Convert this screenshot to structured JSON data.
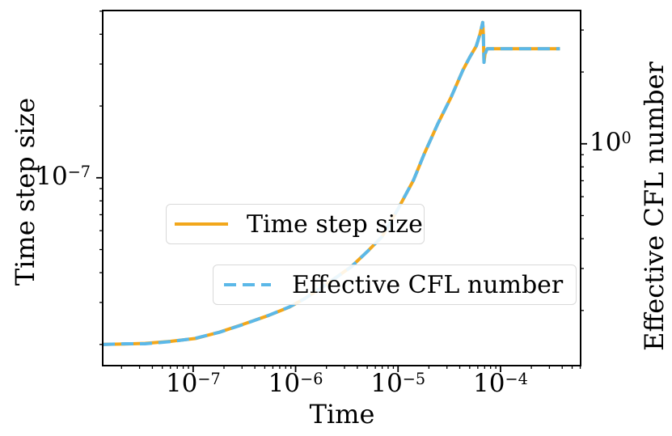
{
  "figure": {
    "background": "#ffffff",
    "text_color": "#000000"
  },
  "chart_data": {
    "type": "line",
    "title": "",
    "xlabel": "Time",
    "ylabel_left": "Time step size",
    "ylabel_right": "Effective CFL number",
    "x_scale": "log",
    "y_scale_left": "log",
    "y_scale_right": "log",
    "grid": false,
    "xlim": [
      1.31e-08,
      0.000605
    ],
    "ylim_left": [
      1.63e-08,
      5.03e-07
    ],
    "ylim_right": [
      0.1174,
      3.622
    ],
    "x_major_ticks": [
      1e-07,
      1e-06,
      1e-05,
      0.0001
    ],
    "x_major_tick_labels": [
      {
        "base": "10",
        "exp": "-7"
      },
      {
        "base": "10",
        "exp": "-6"
      },
      {
        "base": "10",
        "exp": "-5"
      },
      {
        "base": "10",
        "exp": "-4"
      }
    ],
    "y_left_major_ticks": [
      1e-07
    ],
    "y_left_major_tick_labels": [
      {
        "base": "10",
        "exp": "-7"
      }
    ],
    "y_right_major_ticks": [
      1
    ],
    "y_right_major_tick_labels": [
      {
        "base": "10",
        "exp": "0"
      }
    ],
    "legend_position": [
      "center-left-inside",
      "center-inside"
    ],
    "series": [
      {
        "name": "Time step size",
        "axis": "left",
        "color": "#f2a71b",
        "style": "solid",
        "line_width": 4,
        "points": [
          [
            1.31e-08,
            2e-08
          ],
          [
            2.2e-08,
            2.01e-08
          ],
          [
            3.4e-08,
            2.02e-08
          ],
          [
            6e-08,
            2.06e-08
          ],
          [
            1.06e-07,
            2.12e-08
          ],
          [
            1.8e-07,
            2.25e-08
          ],
          [
            3e-07,
            2.42e-08
          ],
          [
            5.5e-07,
            2.65e-08
          ],
          [
            8.7e-07,
            2.87e-08
          ],
          [
            1.2e-06,
            3.1e-08
          ],
          [
            1.74e-06,
            3.43e-08
          ],
          [
            3.5e-06,
            4.24e-08
          ],
          [
            5e-06,
            4.9e-08
          ],
          [
            7e-06,
            5.67e-08
          ],
          [
            8.4e-06,
            6.5e-08
          ],
          [
            1e-05,
            7.4e-08
          ],
          [
            1.42e-05,
            9.8e-08
          ],
          [
            1.8e-05,
            1.26e-07
          ],
          [
            2.45e-05,
            1.69e-07
          ],
          [
            3.3e-05,
            2.18e-07
          ],
          [
            4.3e-05,
            2.83e-07
          ],
          [
            5e-05,
            3.2e-07
          ],
          [
            5.8e-05,
            3.57e-07
          ],
          [
            6.3e-05,
            4e-07
          ],
          [
            6.7e-05,
            4.48e-07
          ],
          [
            6.8e-05,
            4e-07
          ],
          [
            6.9e-05,
            3.05e-07
          ],
          [
            7.05e-05,
            3.3e-07
          ],
          [
            7.4e-05,
            3.48e-07
          ],
          [
            0.0001,
            3.48e-07
          ],
          [
            0.00038,
            3.48e-07
          ]
        ]
      },
      {
        "name": "Effective CFL number",
        "axis": "right",
        "color": "#5bb8e8",
        "style": "dashed",
        "line_width": 4,
        "points": [
          [
            1.31e-08,
            0.144
          ],
          [
            2.2e-08,
            0.145
          ],
          [
            3.4e-08,
            0.145
          ],
          [
            6e-08,
            0.148
          ],
          [
            1.06e-07,
            0.153
          ],
          [
            1.8e-07,
            0.162
          ],
          [
            3e-07,
            0.174
          ],
          [
            5.5e-07,
            0.191
          ],
          [
            8.7e-07,
            0.207
          ],
          [
            1.2e-06,
            0.223
          ],
          [
            1.74e-06,
            0.247
          ],
          [
            3.5e-06,
            0.305
          ],
          [
            5e-06,
            0.353
          ],
          [
            7e-06,
            0.408
          ],
          [
            8.4e-06,
            0.468
          ],
          [
            1e-05,
            0.533
          ],
          [
            1.42e-05,
            0.706
          ],
          [
            1.8e-05,
            0.907
          ],
          [
            2.45e-05,
            1.217
          ],
          [
            3.3e-05,
            1.57
          ],
          [
            4.3e-05,
            2.038
          ],
          [
            5e-05,
            2.304
          ],
          [
            5.8e-05,
            2.57
          ],
          [
            6.3e-05,
            2.88
          ],
          [
            6.7e-05,
            3.226
          ],
          [
            6.8e-05,
            2.88
          ],
          [
            6.9e-05,
            2.196
          ],
          [
            7.05e-05,
            2.376
          ],
          [
            7.4e-05,
            2.506
          ],
          [
            0.0001,
            2.506
          ],
          [
            0.00038,
            2.506
          ]
        ]
      }
    ]
  },
  "legends": [
    {
      "label": "Time step size"
    },
    {
      "label": "Effective CFL number"
    }
  ]
}
